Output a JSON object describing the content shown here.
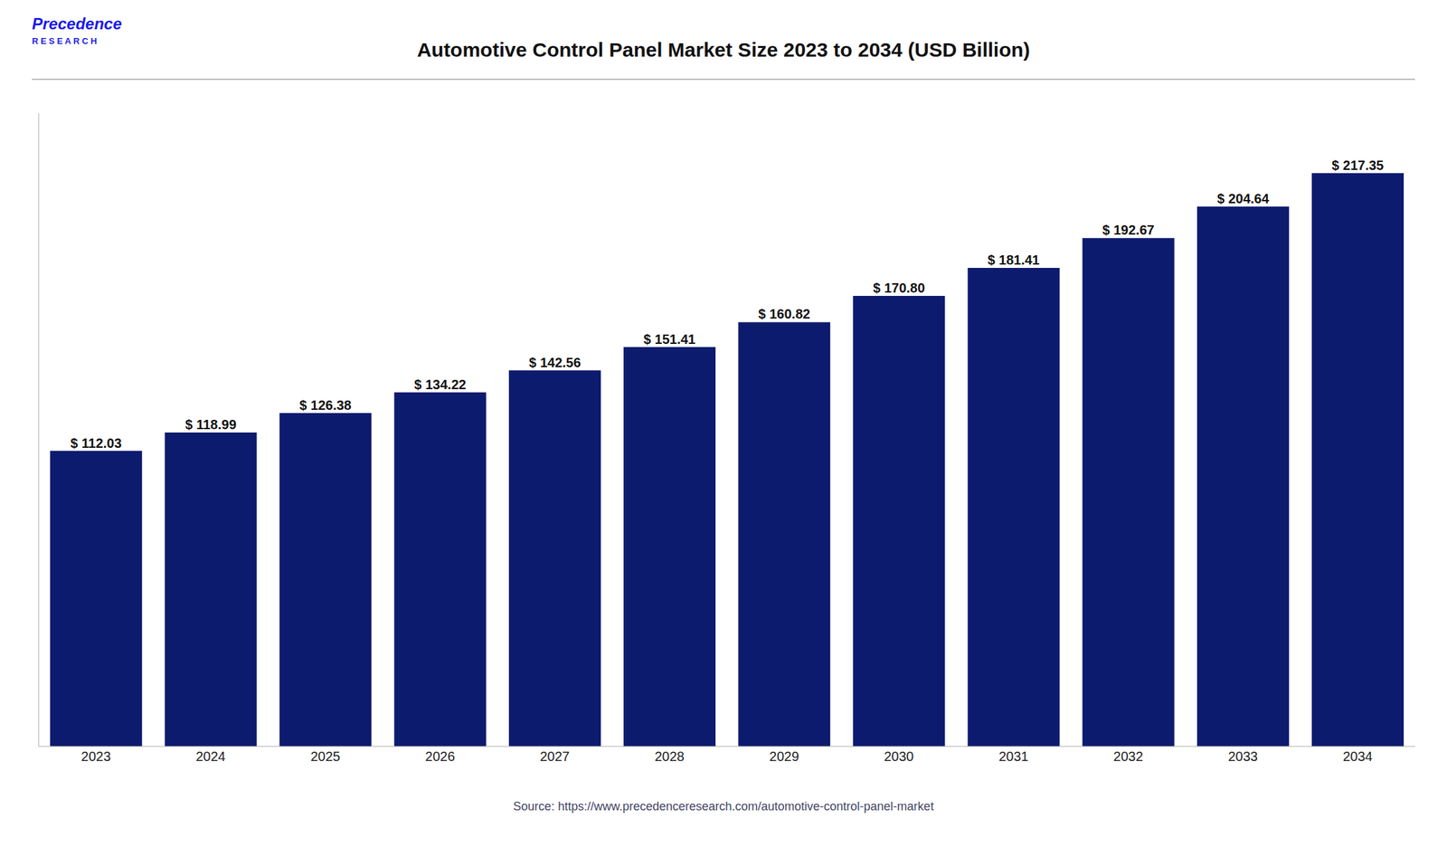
{
  "chart_data": {
    "type": "bar",
    "title": "Automotive Control Panel Market Size 2023 to 2034 (USD Billion)",
    "annotations": [
      "Precedence",
      "R E S E A R C H",
      "Source: https://www.precedenceresearch.com/automotive-control-panel-market"
    ],
    "categories": [
      "2023",
      "2024",
      "2025",
      "2026",
      "2027",
      "2028",
      "2029",
      "2030",
      "2031",
      "2032",
      "2033",
      "2034"
    ],
    "values": [
      112.03,
      118.99,
      126.38,
      134.22,
      142.56,
      151.41,
      160.82,
      170.8,
      181.41,
      192.67,
      204.64,
      217.35
    ],
    "value_labels": [
      "$ 112.03",
      "$ 118.99",
      "$ 126.38",
      "$ 134.22",
      "$ 142.56",
      "$ 151.41",
      "$ 160.82",
      "$ 170.80",
      "$ 181.41",
      "$ 192.67",
      "$ 204.64",
      "$ 217.35"
    ],
    "data_labels": true,
    "color": "#0d1b6e",
    "ylim": [
      0,
      240
    ],
    "grid": false,
    "tick_labels": "x"
  }
}
